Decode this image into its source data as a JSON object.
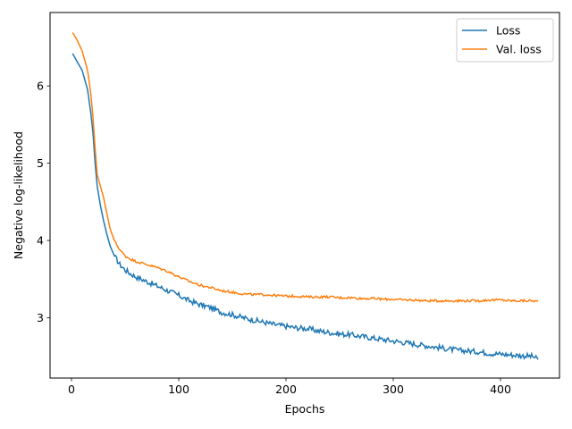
{
  "chart_data": {
    "type": "line",
    "title": "",
    "xlabel": "Epochs",
    "ylabel": "Negative log-likelihood",
    "xlim": [
      -20,
      455
    ],
    "ylim": [
      2.22,
      6.95
    ],
    "xticks": [
      0,
      100,
      200,
      300,
      400
    ],
    "yticks": [
      3,
      4,
      5,
      6
    ],
    "grid": false,
    "legend_position": "top-right",
    "series": [
      {
        "name": "Loss",
        "color": "#1f77b4",
        "points": [
          [
            1,
            6.42
          ],
          [
            5,
            6.32
          ],
          [
            10,
            6.2
          ],
          [
            15,
            5.95
          ],
          [
            18,
            5.65
          ],
          [
            20,
            5.4
          ],
          [
            22,
            5.0
          ],
          [
            24,
            4.7
          ],
          [
            27,
            4.45
          ],
          [
            30,
            4.25
          ],
          [
            33,
            4.08
          ],
          [
            36,
            3.93
          ],
          [
            40,
            3.8
          ],
          [
            45,
            3.69
          ],
          [
            50,
            3.62
          ],
          [
            55,
            3.57
          ],
          [
            60,
            3.53
          ],
          [
            70,
            3.47
          ],
          [
            80,
            3.41
          ],
          [
            90,
            3.35
          ],
          [
            100,
            3.29
          ],
          [
            110,
            3.22
          ],
          [
            120,
            3.17
          ],
          [
            130,
            3.13
          ],
          [
            140,
            3.07
          ],
          [
            150,
            3.04
          ],
          [
            160,
            3.0
          ],
          [
            170,
            2.97
          ],
          [
            180,
            2.94
          ],
          [
            190,
            2.91
          ],
          [
            200,
            2.89
          ],
          [
            210,
            2.87
          ],
          [
            220,
            2.86
          ],
          [
            230,
            2.83
          ],
          [
            240,
            2.81
          ],
          [
            250,
            2.79
          ],
          [
            260,
            2.78
          ],
          [
            270,
            2.76
          ],
          [
            280,
            2.74
          ],
          [
            290,
            2.72
          ],
          [
            300,
            2.7
          ],
          [
            310,
            2.68
          ],
          [
            320,
            2.66
          ],
          [
            330,
            2.64
          ],
          [
            340,
            2.62
          ],
          [
            350,
            2.6
          ],
          [
            360,
            2.58
          ],
          [
            370,
            2.57
          ],
          [
            380,
            2.56
          ],
          [
            390,
            2.54
          ],
          [
            400,
            2.53
          ],
          [
            410,
            2.52
          ],
          [
            420,
            2.51
          ],
          [
            430,
            2.5
          ],
          [
            435,
            2.46
          ]
        ]
      },
      {
        "name": "Val. loss",
        "color": "#ff7f0e",
        "points": [
          [
            1,
            6.69
          ],
          [
            5,
            6.6
          ],
          [
            10,
            6.45
          ],
          [
            15,
            6.2
          ],
          [
            18,
            5.9
          ],
          [
            20,
            5.6
          ],
          [
            22,
            5.2
          ],
          [
            24,
            4.85
          ],
          [
            27,
            4.7
          ],
          [
            30,
            4.55
          ],
          [
            33,
            4.35
          ],
          [
            36,
            4.15
          ],
          [
            40,
            4.0
          ],
          [
            45,
            3.88
          ],
          [
            50,
            3.8
          ],
          [
            55,
            3.76
          ],
          [
            60,
            3.73
          ],
          [
            70,
            3.69
          ],
          [
            80,
            3.65
          ],
          [
            90,
            3.6
          ],
          [
            100,
            3.53
          ],
          [
            110,
            3.47
          ],
          [
            120,
            3.42
          ],
          [
            130,
            3.39
          ],
          [
            140,
            3.35
          ],
          [
            150,
            3.33
          ],
          [
            160,
            3.31
          ],
          [
            170,
            3.3
          ],
          [
            180,
            3.3
          ],
          [
            190,
            3.29
          ],
          [
            200,
            3.28
          ],
          [
            210,
            3.28
          ],
          [
            220,
            3.27
          ],
          [
            230,
            3.27
          ],
          [
            240,
            3.27
          ],
          [
            250,
            3.26
          ],
          [
            260,
            3.26
          ],
          [
            270,
            3.25
          ],
          [
            280,
            3.25
          ],
          [
            290,
            3.24
          ],
          [
            300,
            3.24
          ],
          [
            310,
            3.23
          ],
          [
            320,
            3.23
          ],
          [
            330,
            3.22
          ],
          [
            340,
            3.22
          ],
          [
            350,
            3.22
          ],
          [
            360,
            3.22
          ],
          [
            370,
            3.22
          ],
          [
            380,
            3.22
          ],
          [
            390,
            3.23
          ],
          [
            400,
            3.23
          ],
          [
            410,
            3.22
          ],
          [
            420,
            3.22
          ],
          [
            430,
            3.22
          ],
          [
            435,
            3.21
          ]
        ]
      }
    ]
  }
}
